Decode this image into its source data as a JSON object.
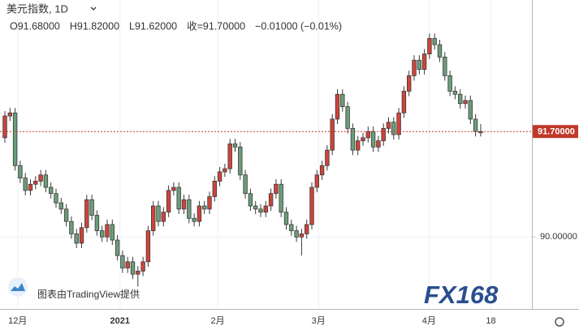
{
  "chart_data": {
    "type": "candlestick",
    "title": "美元指数, 1D",
    "legend": [
      "O91.68000",
      "H91.82000",
      "L91.62000",
      "收=91.70000",
      "−0.01000 (−0.01%)"
    ],
    "watermark": "图表由TradingView提供",
    "logo": "FX168",
    "up_color": "#d0433a",
    "down_color": "#6b9e7a",
    "border_color": "#3a3a3a",
    "ylim": [
      88.84,
      93.82
    ],
    "yticks": [
      {
        "value": 90,
        "label": "90.00000"
      }
    ],
    "price_line": {
      "value": 91.7,
      "label": "91.70000",
      "color": "#c0392b"
    },
    "xlim": [
      -1,
      103
    ],
    "xticks": [
      {
        "value": 2.5,
        "label": "12月"
      },
      {
        "value": 22.5,
        "label": "2021"
      },
      {
        "value": 41.6,
        "label": "2月"
      },
      {
        "value": 61.3,
        "label": "3月"
      },
      {
        "value": 82.9,
        "label": "4月"
      },
      {
        "value": 95,
        "label": "18"
      }
    ],
    "grid": true,
    "ohlc": [
      [
        91.6,
        92.03,
        91.52,
        91.95
      ],
      [
        91.95,
        92.08,
        91.87,
        92.0
      ],
      [
        92.0,
        92.08,
        91.07,
        91.15
      ],
      [
        91.15,
        91.23,
        90.87,
        90.95
      ],
      [
        90.95,
        91.03,
        90.67,
        90.75
      ],
      [
        90.75,
        90.93,
        90.67,
        90.85
      ],
      [
        90.85,
        90.98,
        90.77,
        90.9
      ],
      [
        90.9,
        91.08,
        90.82,
        91.0
      ],
      [
        91.0,
        91.08,
        90.72,
        90.8
      ],
      [
        90.8,
        90.88,
        90.62,
        90.7
      ],
      [
        90.7,
        90.78,
        90.47,
        90.55
      ],
      [
        90.55,
        90.63,
        90.37,
        90.45
      ],
      [
        90.45,
        90.53,
        90.17,
        90.25
      ],
      [
        90.25,
        90.33,
        89.97,
        90.05
      ],
      [
        90.05,
        90.13,
        89.82,
        89.9
      ],
      [
        89.9,
        90.23,
        89.82,
        90.15
      ],
      [
        90.15,
        90.68,
        90.07,
        90.6
      ],
      [
        90.6,
        90.68,
        90.27,
        90.35
      ],
      [
        90.35,
        90.43,
        90.02,
        90.1
      ],
      [
        90.1,
        90.18,
        89.92,
        90.0
      ],
      [
        90.0,
        90.28,
        89.92,
        90.2
      ],
      [
        90.2,
        90.28,
        89.87,
        89.95
      ],
      [
        89.95,
        90.03,
        89.62,
        89.7
      ],
      [
        89.7,
        89.78,
        89.42,
        89.5
      ],
      [
        89.5,
        89.68,
        89.42,
        89.6
      ],
      [
        89.6,
        89.68,
        89.32,
        89.4
      ],
      [
        89.4,
        89.53,
        89.2,
        89.45
      ],
      [
        89.45,
        89.68,
        89.37,
        89.6
      ],
      [
        89.6,
        90.18,
        89.52,
        90.1
      ],
      [
        90.1,
        90.58,
        90.02,
        90.5
      ],
      [
        90.5,
        90.58,
        90.17,
        90.25
      ],
      [
        90.25,
        90.48,
        90.17,
        90.4
      ],
      [
        90.4,
        90.83,
        90.32,
        90.75
      ],
      [
        90.75,
        90.88,
        90.67,
        90.8
      ],
      [
        90.8,
        90.88,
        90.37,
        90.45
      ],
      [
        90.45,
        90.68,
        90.37,
        90.6
      ],
      [
        90.6,
        90.68,
        90.22,
        90.3
      ],
      [
        90.3,
        90.38,
        90.17,
        90.25
      ],
      [
        90.25,
        90.58,
        90.17,
        90.5
      ],
      [
        90.5,
        90.58,
        90.37,
        90.45
      ],
      [
        90.45,
        90.73,
        90.37,
        90.65
      ],
      [
        90.65,
        90.98,
        90.57,
        90.9
      ],
      [
        90.9,
        91.13,
        90.82,
        91.05
      ],
      [
        91.05,
        91.18,
        90.97,
        91.1
      ],
      [
        91.1,
        91.58,
        91.02,
        91.5
      ],
      [
        91.5,
        91.58,
        91.37,
        91.45
      ],
      [
        91.45,
        91.53,
        90.92,
        91.0
      ],
      [
        91.0,
        91.08,
        90.62,
        90.7
      ],
      [
        90.7,
        90.78,
        90.42,
        90.5
      ],
      [
        90.5,
        90.58,
        90.37,
        90.45
      ],
      [
        90.45,
        90.53,
        90.32,
        90.4
      ],
      [
        90.4,
        90.58,
        90.32,
        90.5
      ],
      [
        90.5,
        90.78,
        90.42,
        90.7
      ],
      [
        90.7,
        90.93,
        90.62,
        90.85
      ],
      [
        90.85,
        90.93,
        90.32,
        90.4
      ],
      [
        90.4,
        90.48,
        90.12,
        90.2
      ],
      [
        90.2,
        90.28,
        90.02,
        90.1
      ],
      [
        90.1,
        90.18,
        89.92,
        90.0
      ],
      [
        90.0,
        90.13,
        89.7,
        90.05
      ],
      [
        90.05,
        90.28,
        89.97,
        90.2
      ],
      [
        90.2,
        90.88,
        90.12,
        90.8
      ],
      [
        90.8,
        91.08,
        90.72,
        91.0
      ],
      [
        91.0,
        91.23,
        90.92,
        91.15
      ],
      [
        91.15,
        91.48,
        91.07,
        91.4
      ],
      [
        91.4,
        91.98,
        91.32,
        91.9
      ],
      [
        91.9,
        92.38,
        91.82,
        92.3
      ],
      [
        92.3,
        92.38,
        92.02,
        92.1
      ],
      [
        92.1,
        92.18,
        91.67,
        91.75
      ],
      [
        91.75,
        91.83,
        91.32,
        91.4
      ],
      [
        91.4,
        91.63,
        91.32,
        91.55
      ],
      [
        91.55,
        91.68,
        91.47,
        91.6
      ],
      [
        91.6,
        91.78,
        91.52,
        91.7
      ],
      [
        91.7,
        91.78,
        91.37,
        91.45
      ],
      [
        91.45,
        91.63,
        91.37,
        91.55
      ],
      [
        91.55,
        91.83,
        91.47,
        91.75
      ],
      [
        91.75,
        91.93,
        91.67,
        91.85
      ],
      [
        91.85,
        91.93,
        91.57,
        91.65
      ],
      [
        91.65,
        92.08,
        91.57,
        92.0
      ],
      [
        92.0,
        92.43,
        91.92,
        92.35
      ],
      [
        92.35,
        92.68,
        92.27,
        92.6
      ],
      [
        92.6,
        92.93,
        92.52,
        92.85
      ],
      [
        92.85,
        92.93,
        92.62,
        92.7
      ],
      [
        92.7,
        93.03,
        92.62,
        92.95
      ],
      [
        92.95,
        93.28,
        92.87,
        93.2
      ],
      [
        93.2,
        93.28,
        93.02,
        93.1
      ],
      [
        93.1,
        93.18,
        92.82,
        92.9
      ],
      [
        92.9,
        92.98,
        92.52,
        92.6
      ],
      [
        92.6,
        92.68,
        92.27,
        92.35
      ],
      [
        92.35,
        92.43,
        92.22,
        92.3
      ],
      [
        92.3,
        92.38,
        92.07,
        92.15
      ],
      [
        92.15,
        92.28,
        92.07,
        92.2
      ],
      [
        92.2,
        92.28,
        91.82,
        91.9
      ],
      [
        91.9,
        91.98,
        91.62,
        91.7
      ],
      [
        91.68,
        91.82,
        91.62,
        91.7
      ]
    ]
  }
}
